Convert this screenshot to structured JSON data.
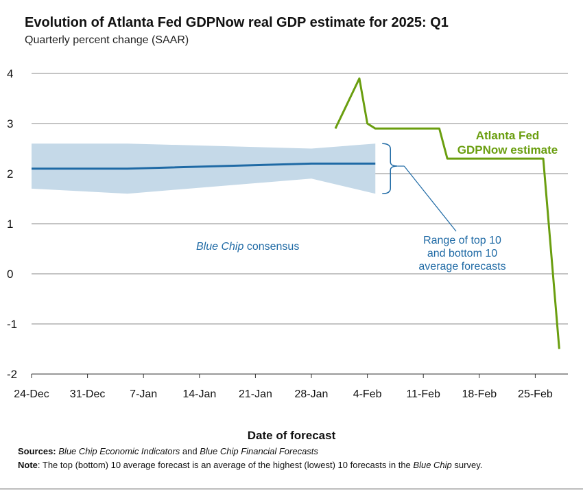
{
  "chart_data": {
    "type": "line",
    "title": "Evolution of Atlanta Fed GDPNow real GDP estimate for 2025: Q1",
    "subtitle": "Quarterly percent change (SAAR)",
    "xlabel": "Date of forecast",
    "ylabel": "",
    "ylim": [
      -2,
      4
    ],
    "yticks": [
      "4",
      "3",
      "2",
      "1",
      "0",
      "-1",
      "-2"
    ],
    "ytick_values": [
      4,
      3,
      2,
      1,
      0,
      -1,
      -2
    ],
    "xticks": [
      "24-Dec",
      "31-Dec",
      "7-Jan",
      "14-Jan",
      "21-Jan",
      "28-Jan",
      "4-Feb",
      "11-Feb",
      "18-Feb",
      "25-Feb"
    ],
    "x_unit": "days since 24-Dec",
    "xlim": [
      0,
      67
    ],
    "grid": true,
    "series": [
      {
        "name": "Atlanta Fed GDPNow estimate",
        "label_lines": [
          "Atlanta Fed",
          "GDPNow estimate"
        ],
        "color": "#6a9e0f",
        "x": [
          38,
          41,
          42,
          43,
          51,
          52,
          64,
          66
        ],
        "y": [
          2.9,
          3.9,
          3.0,
          2.9,
          2.9,
          2.3,
          2.3,
          -1.5
        ]
      },
      {
        "name": "Blue Chip consensus",
        "color": "#1f6aa5",
        "x": [
          0,
          12,
          35,
          43
        ],
        "y": [
          2.1,
          2.1,
          2.2,
          2.2
        ]
      },
      {
        "name": "Range of top 10 and bottom 10 average forecasts",
        "label_lines": [
          "Range of top 10",
          "and bottom 10",
          "average forecasts"
        ],
        "color": "#c5d9e8",
        "x": [
          0,
          12,
          35,
          43
        ],
        "top": [
          2.6,
          2.6,
          2.5,
          2.6
        ],
        "bottom": [
          1.7,
          1.6,
          1.9,
          1.6
        ]
      }
    ],
    "annotations": {
      "consensus_italic": "Blue Chip",
      "consensus_rest": " consensus"
    }
  },
  "footer": {
    "sources_label": "Sources:",
    "sources_italic1": "Blue Chip Economic Indicators",
    "sources_and": " and ",
    "sources_italic2": "Blue Chip Financial Forecasts",
    "note_label": "Note",
    "note_text": ": The top (bottom) 10 average forecast is an average of the highest (lowest) 10 forecasts in the ",
    "note_italic": "Blue Chip",
    "note_end": "survey."
  }
}
